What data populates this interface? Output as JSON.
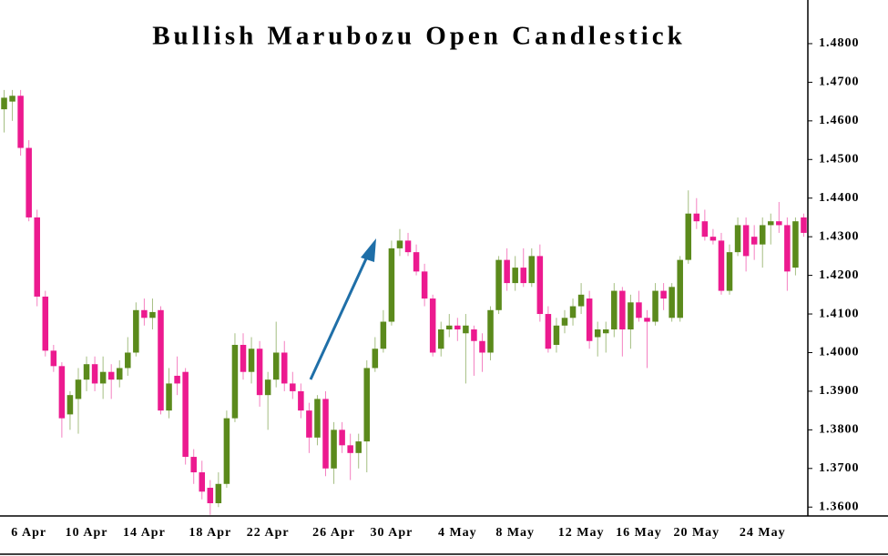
{
  "chart_data": {
    "type": "candlestick",
    "title": "Bullish Marubozu Open Candlestick",
    "up_color": "#5b8a1c",
    "down_color": "#ec1a8f",
    "ylim": [
      1.3577,
      1.4913
    ],
    "yticks": [
      {
        "value": 1.36,
        "label": "1.3600"
      },
      {
        "value": 1.37,
        "label": "1.3700"
      },
      {
        "value": 1.38,
        "label": "1.3800"
      },
      {
        "value": 1.39,
        "label": "1.3900"
      },
      {
        "value": 1.4,
        "label": "1.4000"
      },
      {
        "value": 1.41,
        "label": "1.4100"
      },
      {
        "value": 1.42,
        "label": "1.4200"
      },
      {
        "value": 1.43,
        "label": "1.4300"
      },
      {
        "value": 1.44,
        "label": "1.4400"
      },
      {
        "value": 1.45,
        "label": "1.4500"
      },
      {
        "value": 1.46,
        "label": "1.4600"
      },
      {
        "value": 1.47,
        "label": "1.4700"
      },
      {
        "value": 1.48,
        "label": "1.4800"
      }
    ],
    "categories": [
      null,
      null,
      null,
      "6 Apr",
      null,
      null,
      null,
      null,
      null,
      null,
      "10 Apr",
      null,
      null,
      null,
      null,
      null,
      null,
      "14 Apr",
      null,
      null,
      null,
      null,
      null,
      null,
      null,
      "18 Apr",
      null,
      null,
      null,
      null,
      null,
      null,
      "22 Apr",
      null,
      null,
      null,
      null,
      null,
      null,
      null,
      "26 Apr",
      null,
      null,
      null,
      null,
      null,
      null,
      "30 Apr",
      null,
      null,
      null,
      null,
      null,
      null,
      null,
      "4 May",
      null,
      null,
      null,
      null,
      null,
      null,
      "8 May",
      null,
      null,
      null,
      null,
      null,
      null,
      null,
      "12 May",
      null,
      null,
      null,
      null,
      null,
      null,
      "16 May",
      null,
      null,
      null,
      null,
      null,
      null,
      "20 May",
      null,
      null,
      null,
      null,
      null,
      null,
      null,
      "24 May",
      null,
      null,
      null,
      null,
      null
    ],
    "open": [
      1.463,
      1.465,
      1.4665,
      1.453,
      1.435,
      1.4145,
      1.4005,
      1.3965,
      1.384,
      1.388,
      1.393,
      1.397,
      1.392,
      1.395,
      1.393,
      1.396,
      1.4,
      1.411,
      1.409,
      1.411,
      1.385,
      1.394,
      1.395,
      1.373,
      1.369,
      1.365,
      1.361,
      1.366,
      1.383,
      1.402,
      1.395,
      1.401,
      1.389,
      1.393,
      1.4,
      1.392,
      1.39,
      1.385,
      1.378,
      1.388,
      1.37,
      1.38,
      1.376,
      1.374,
      1.377,
      1.396,
      1.401,
      1.408,
      1.427,
      1.429,
      1.426,
      1.421,
      1.414,
      1.401,
      1.406,
      1.407,
      1.405,
      1.406,
      1.403,
      1.4,
      1.411,
      1.424,
      1.418,
      1.422,
      1.418,
      1.425,
      1.41,
      1.402,
      1.407,
      1.409,
      1.412,
      1.414,
      1.404,
      1.405,
      1.406,
      1.416,
      1.406,
      1.413,
      1.409,
      1.408,
      1.416,
      1.409,
      1.409,
      1.424,
      1.436,
      1.434,
      1.43,
      1.429,
      1.416,
      1.426,
      1.433,
      1.43,
      1.428,
      1.433,
      1.434,
      1.433,
      1.422,
      1.435
    ],
    "high": [
      1.468,
      1.468,
      1.468,
      1.455,
      1.437,
      1.416,
      1.402,
      1.3975,
      1.39,
      1.396,
      1.399,
      1.399,
      1.399,
      1.397,
      1.398,
      1.404,
      1.413,
      1.414,
      1.414,
      1.412,
      1.396,
      1.399,
      1.396,
      1.375,
      1.372,
      1.367,
      1.369,
      1.385,
      1.405,
      1.405,
      1.404,
      1.403,
      1.395,
      1.408,
      1.403,
      1.395,
      1.392,
      1.387,
      1.389,
      1.39,
      1.382,
      1.382,
      1.379,
      1.379,
      1.398,
      1.404,
      1.411,
      1.429,
      1.432,
      1.431,
      1.428,
      1.423,
      1.415,
      1.408,
      1.41,
      1.409,
      1.41,
      1.407,
      1.405,
      1.412,
      1.425,
      1.427,
      1.425,
      1.427,
      1.427,
      1.428,
      1.412,
      1.409,
      1.411,
      1.414,
      1.418,
      1.416,
      1.408,
      1.408,
      1.418,
      1.417,
      1.415,
      1.416,
      1.411,
      1.418,
      1.418,
      1.418,
      1.425,
      1.442,
      1.44,
      1.437,
      1.432,
      1.431,
      1.428,
      1.435,
      1.435,
      1.433,
      1.435,
      1.436,
      1.439,
      1.435,
      1.435,
      1.436
    ],
    "low": [
      1.457,
      1.46,
      1.451,
      1.434,
      1.412,
      1.399,
      1.395,
      1.378,
      1.38,
      1.379,
      1.39,
      1.39,
      1.388,
      1.388,
      1.391,
      1.394,
      1.399,
      1.407,
      1.406,
      1.384,
      1.383,
      1.389,
      1.371,
      1.366,
      1.362,
      1.358,
      1.36,
      1.365,
      1.382,
      1.393,
      1.392,
      1.386,
      1.38,
      1.391,
      1.39,
      1.388,
      1.383,
      1.374,
      1.376,
      1.368,
      1.366,
      1.374,
      1.367,
      1.37,
      1.369,
      1.395,
      1.4,
      1.407,
      1.425,
      1.425,
      1.42,
      1.412,
      1.399,
      1.399,
      1.404,
      1.403,
      1.392,
      1.394,
      1.395,
      1.398,
      1.41,
      1.416,
      1.416,
      1.417,
      1.417,
      1.408,
      1.4,
      1.4,
      1.405,
      1.407,
      1.41,
      1.401,
      1.399,
      1.4,
      1.404,
      1.399,
      1.401,
      1.408,
      1.396,
      1.407,
      1.411,
      1.408,
      1.408,
      1.423,
      1.432,
      1.429,
      1.428,
      1.415,
      1.415,
      1.425,
      1.421,
      1.424,
      1.422,
      1.428,
      1.431,
      1.416,
      1.42,
      1.43
    ],
    "close": [
      1.466,
      1.4665,
      1.453,
      1.435,
      1.4145,
      1.4005,
      1.3965,
      1.383,
      1.389,
      1.393,
      1.397,
      1.392,
      1.395,
      1.393,
      1.396,
      1.4,
      1.411,
      1.409,
      1.4105,
      1.385,
      1.392,
      1.392,
      1.373,
      1.369,
      1.364,
      1.361,
      1.366,
      1.383,
      1.402,
      1.395,
      1.401,
      1.389,
      1.393,
      1.4,
      1.392,
      1.39,
      1.385,
      1.378,
      1.388,
      1.37,
      1.38,
      1.376,
      1.374,
      1.377,
      1.396,
      1.401,
      1.408,
      1.427,
      1.429,
      1.426,
      1.421,
      1.414,
      1.4,
      1.406,
      1.407,
      1.406,
      1.407,
      1.403,
      1.4,
      1.411,
      1.424,
      1.418,
      1.422,
      1.418,
      1.425,
      1.41,
      1.401,
      1.407,
      1.409,
      1.412,
      1.415,
      1.403,
      1.406,
      1.406,
      1.416,
      1.406,
      1.413,
      1.409,
      1.408,
      1.416,
      1.414,
      1.417,
      1.424,
      1.436,
      1.434,
      1.43,
      1.429,
      1.416,
      1.426,
      1.433,
      1.425,
      1.428,
      1.433,
      1.434,
      1.433,
      1.421,
      1.434,
      1.431
    ]
  }
}
